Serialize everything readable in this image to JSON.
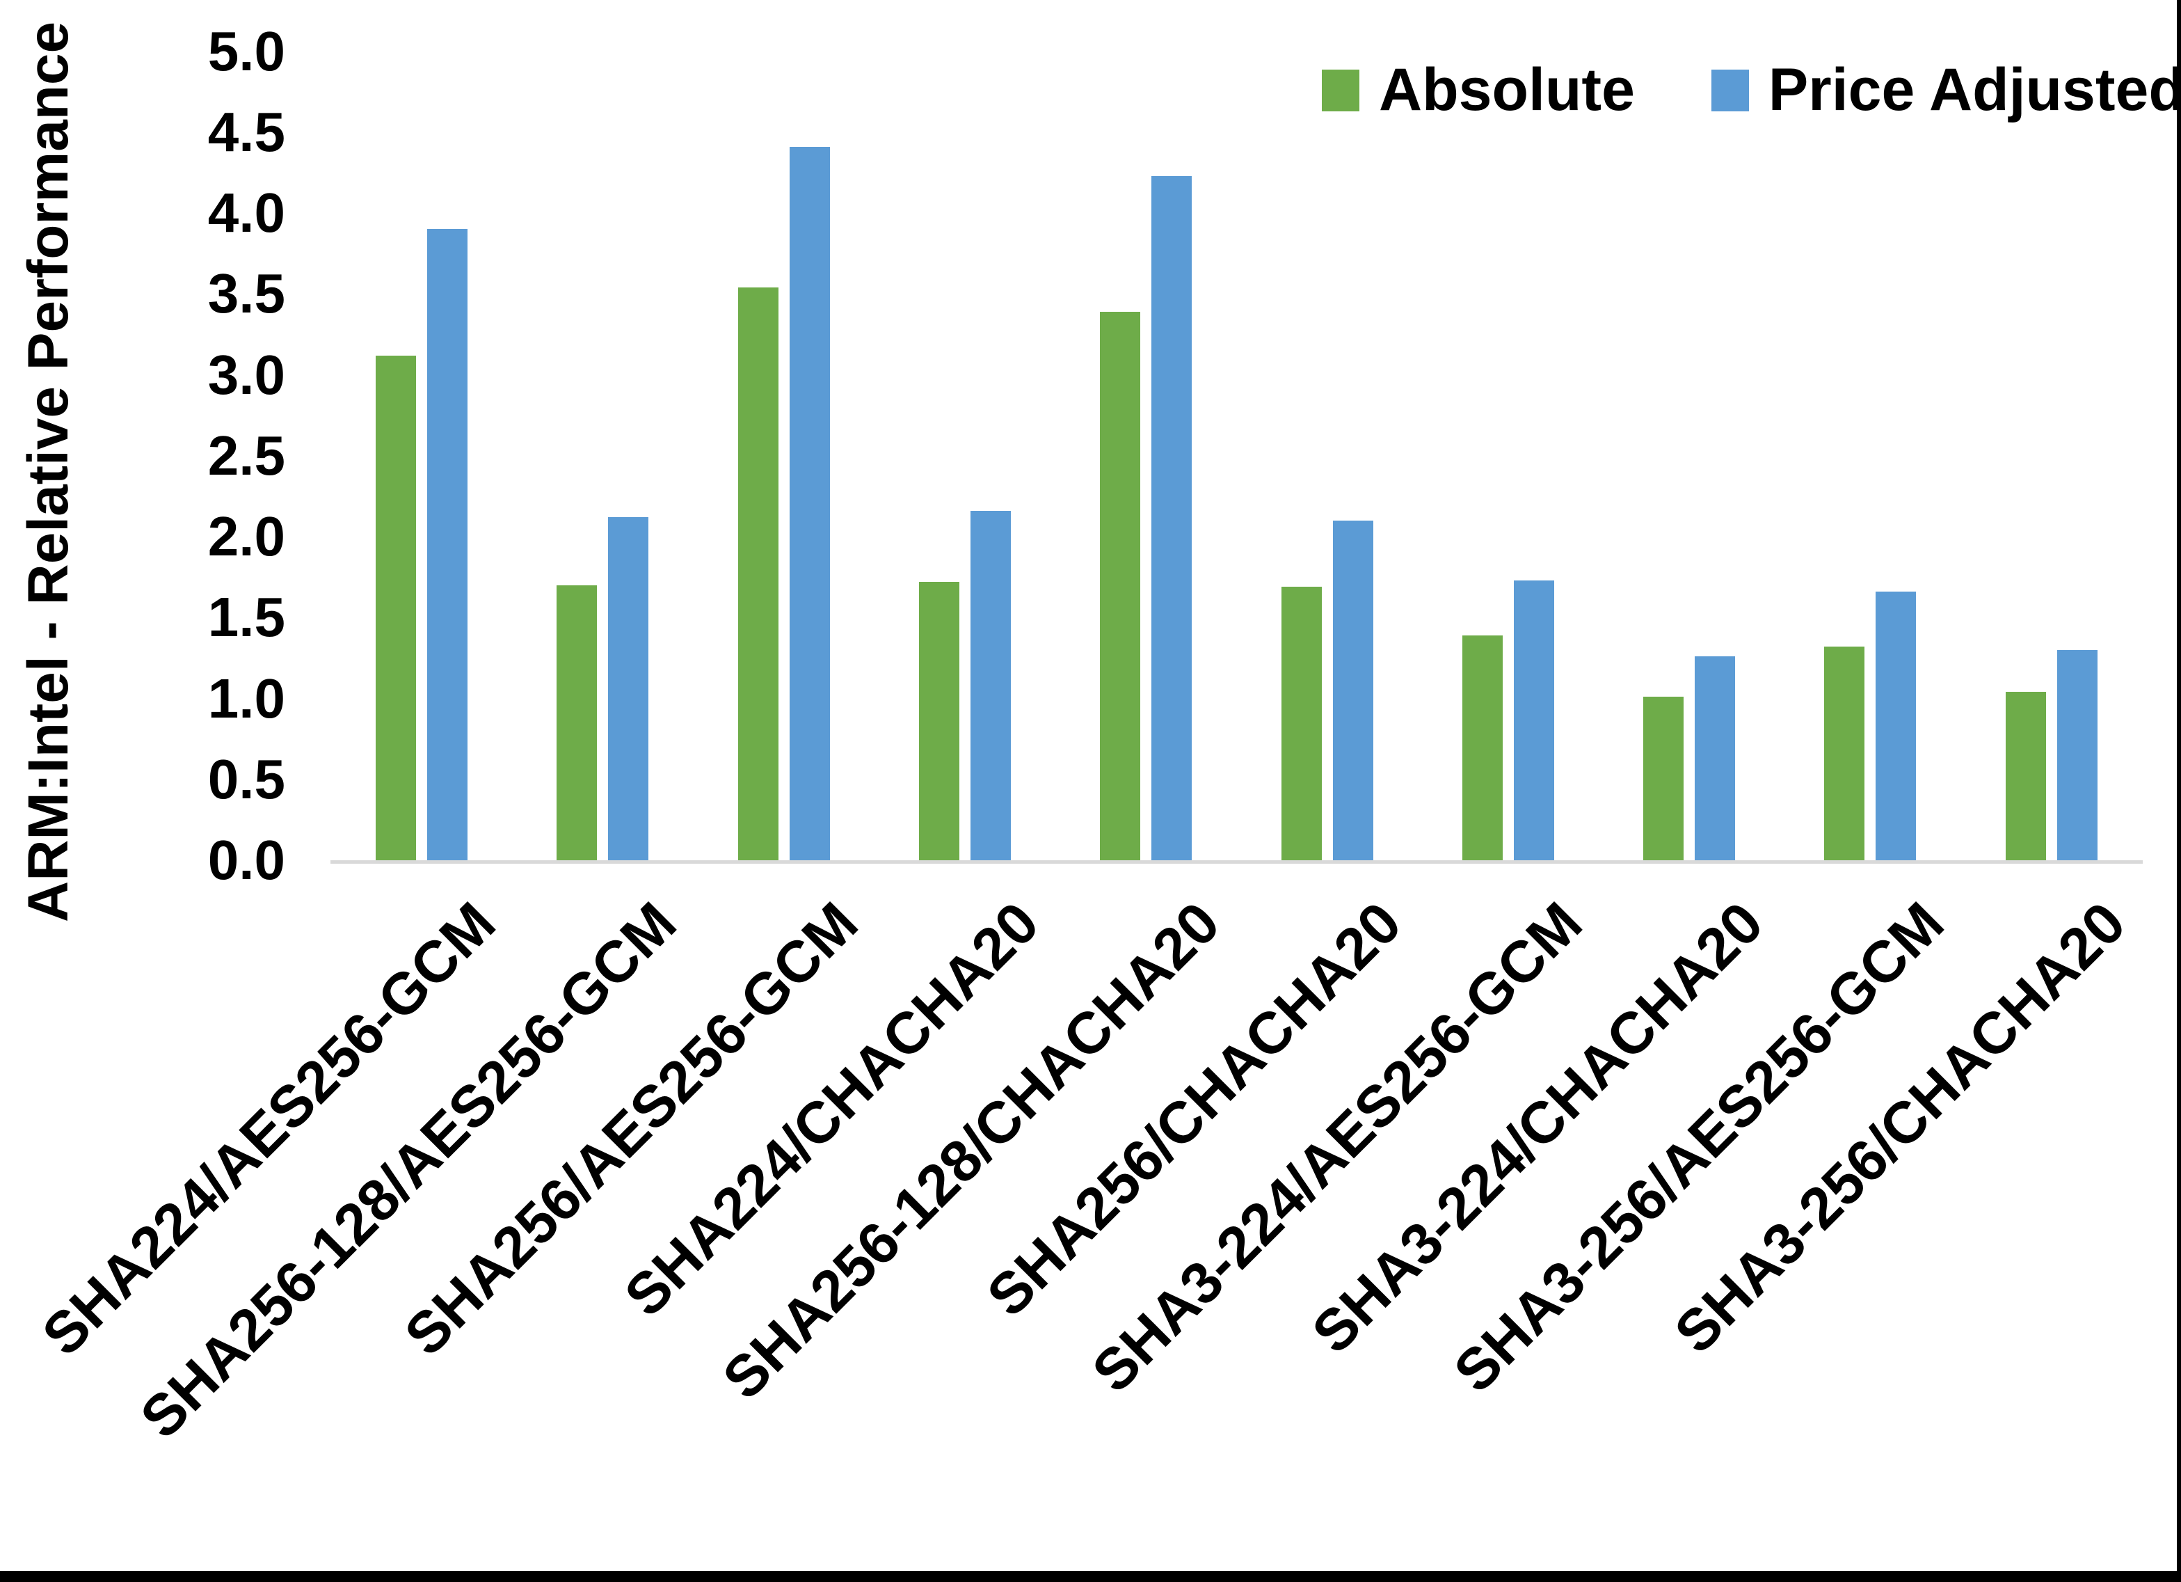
{
  "chart_data": {
    "type": "bar",
    "title": "",
    "ylabel": "ARM:Intel - Relative Performance",
    "xlabel": "",
    "ylim": [
      0.0,
      5.0
    ],
    "y_tick_step": 0.5,
    "y_ticks": [
      "0.0",
      "0.5",
      "1.0",
      "1.5",
      "2.0",
      "2.5",
      "3.0",
      "3.5",
      "4.0",
      "4.5",
      "5.0"
    ],
    "grid": false,
    "legend_position": "top-right",
    "categories": [
      "SHA224/AES256-GCM",
      "SHA256-128/AES256-GCM",
      "SHA256/AES256-GCM",
      "SHA224/CHACHA20",
      "SHA256-128/CHACHA20",
      "SHA256/CHACHA20",
      "SHA3-224/AES256-GCM",
      "SHA3-224/CHACHA20",
      "SHA3-256/AES256-GCM",
      "SHA3-256/CHACHA20"
    ],
    "series": [
      {
        "name": "Absolute",
        "color": "#6eac49",
        "values": [
          3.12,
          1.7,
          3.54,
          1.72,
          3.39,
          1.69,
          1.39,
          1.01,
          1.32,
          1.04
        ]
      },
      {
        "name": "Price Adjusted",
        "color": "#5b9bd5",
        "values": [
          3.9,
          2.12,
          4.41,
          2.16,
          4.23,
          2.1,
          1.73,
          1.26,
          1.66,
          1.3
        ]
      }
    ],
    "axis_line_color": "#d9d9d9",
    "page_border_color": "#000000"
  }
}
